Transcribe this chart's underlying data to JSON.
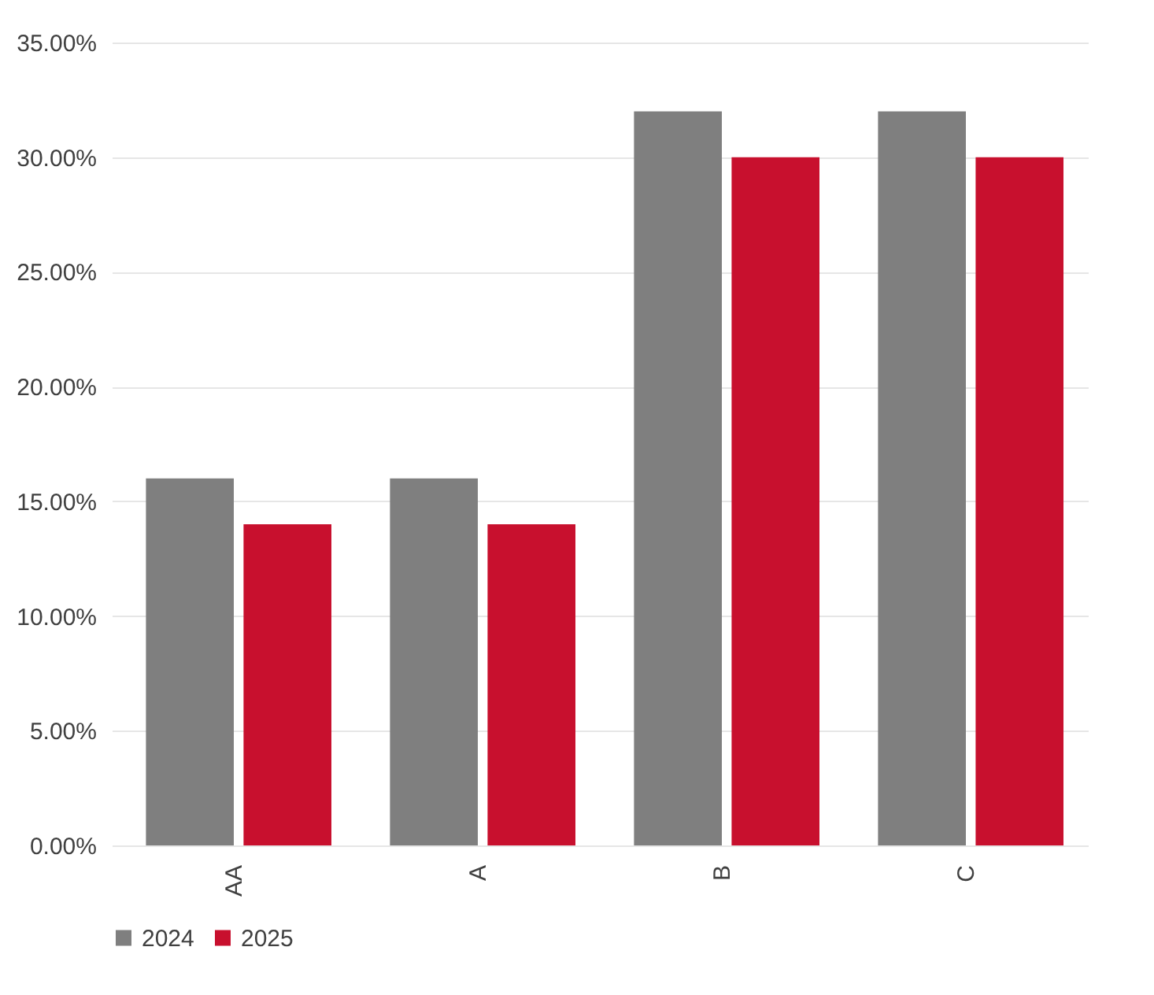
{
  "chart_data": {
    "type": "bar",
    "categories": [
      "AA",
      "A",
      "B",
      "C"
    ],
    "series": [
      {
        "name": "2024",
        "color": "#7f7f7f",
        "values": [
          16,
          16,
          32,
          32
        ]
      },
      {
        "name": "2025",
        "color": "#c8102e",
        "values": [
          14,
          14,
          30,
          30
        ]
      }
    ],
    "ylim": [
      0,
      35
    ],
    "yticks": [
      {
        "value": 0,
        "label": "0.00%"
      },
      {
        "value": 5,
        "label": "5.00%"
      },
      {
        "value": 10,
        "label": "10.00%"
      },
      {
        "value": 15,
        "label": "15.00%"
      },
      {
        "value": 20,
        "label": "20.00%"
      },
      {
        "value": 25,
        "label": "25.00%"
      },
      {
        "value": 30,
        "label": "30.00%"
      },
      {
        "value": 35,
        "label": "35.00%"
      }
    ],
    "grid": "y",
    "legend": "bottom"
  }
}
